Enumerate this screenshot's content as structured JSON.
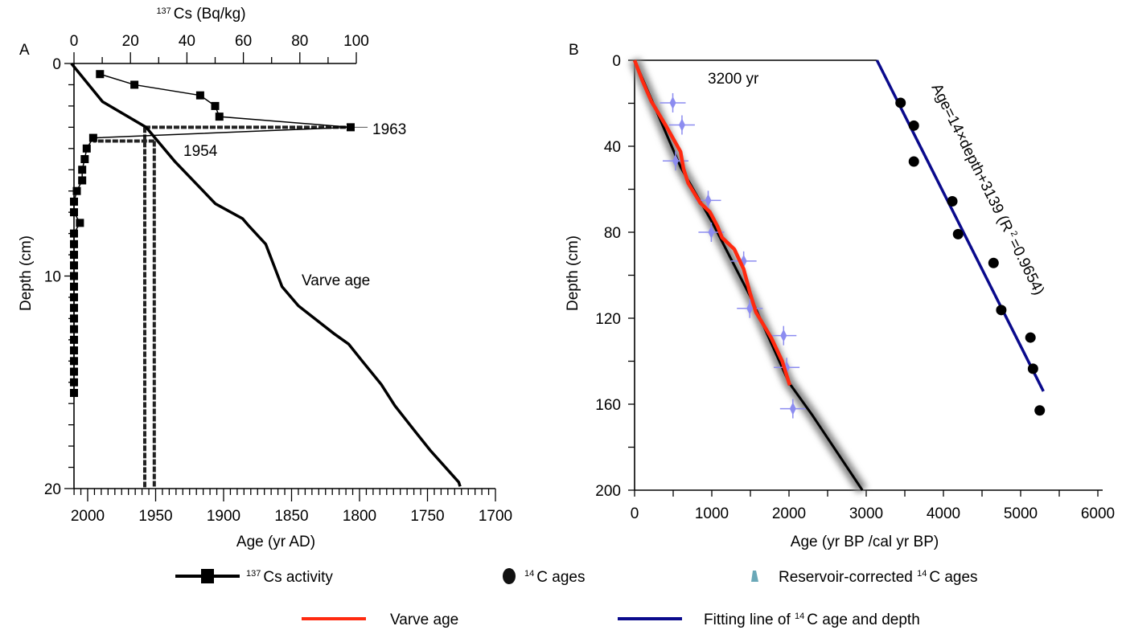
{
  "chart_data": [
    {
      "panel": "A",
      "type": "line",
      "top_axis": {
        "label_sup": "137",
        "label": "Cs (Bq/kg)",
        "range": [
          0,
          100
        ],
        "ticks": [
          "0",
          "20",
          "40",
          "60",
          "80",
          "100"
        ]
      },
      "bottom_axis": {
        "label": "Age (yr AD)",
        "range": [
          2012,
          1700
        ],
        "ticks": [
          "2000",
          "1950",
          "1900",
          "1850",
          "1800",
          "1750",
          "1700"
        ]
      },
      "y_axis": {
        "label": "Depth (cm)",
        "range": [
          0,
          20
        ],
        "ticks": [
          "0",
          "10",
          "20"
        ],
        "inverted": true
      },
      "series": [
        {
          "name": "137Cs activity",
          "axis": "top",
          "marker": "square",
          "points": [
            [
              9.2,
              0.5
            ],
            [
              21.4,
              1.0
            ],
            [
              44.7,
              1.5
            ],
            [
              50,
              2.0
            ],
            [
              51.5,
              2.5
            ],
            [
              98,
              3.0
            ],
            [
              6.8,
              3.5
            ],
            [
              4.5,
              4.0
            ],
            [
              3.8,
              4.5
            ],
            [
              2.9,
              5.0
            ],
            [
              2.9,
              5.5
            ],
            [
              1.0,
              6.0
            ],
            [
              0,
              6.5
            ],
            [
              0,
              7.0
            ],
            [
              2.1,
              7.5
            ],
            [
              0,
              8.0
            ],
            [
              0,
              8.5
            ],
            [
              0,
              9.0
            ],
            [
              0,
              9.5
            ],
            [
              0,
              10.0
            ],
            [
              0,
              10.5
            ],
            [
              0,
              11.0
            ],
            [
              0,
              11.5
            ],
            [
              0,
              12.0
            ],
            [
              0,
              12.5
            ],
            [
              0,
              13.0
            ],
            [
              0,
              13.5
            ],
            [
              0,
              14.0
            ],
            [
              0,
              14.5
            ],
            [
              0,
              15.0
            ],
            [
              0,
              15.5
            ]
          ]
        },
        {
          "name": "Varve age",
          "axis": "bottom",
          "points": [
            [
              2012,
              0
            ],
            [
              1989,
              1.8
            ],
            [
              1957,
              3.0
            ],
            [
              1936,
              4.6
            ],
            [
              1906,
              6.6
            ],
            [
              1886,
              7.3
            ],
            [
              1882,
              7.6
            ],
            [
              1869,
              8.5
            ],
            [
              1863,
              9.5
            ],
            [
              1857,
              10.5
            ],
            [
              1845,
              11.4
            ],
            [
              1835,
              11.9
            ],
            [
              1819,
              12.7
            ],
            [
              1808,
              13.2
            ],
            [
              1798,
              14.0
            ],
            [
              1784,
              15.1
            ],
            [
              1774,
              16.1
            ],
            [
              1758,
              17.4
            ],
            [
              1748,
              18.2
            ],
            [
              1727,
              19.7
            ],
            [
              1726,
              19.9
            ]
          ]
        }
      ],
      "markers": [
        {
          "label": "1963",
          "depth": 3.0,
          "cs": 98,
          "age": 1958
        },
        {
          "label": "1954",
          "depth": 3.65,
          "cs": 6.8,
          "age": 1951
        }
      ],
      "annotations": {
        "varve": "Varve age"
      }
    },
    {
      "panel": "B",
      "type": "scatter",
      "x_axis": {
        "label": "Age (yr BP /cal yr BP)",
        "range": [
          0,
          6000
        ],
        "ticks": [
          "0",
          "1000",
          "2000",
          "3000",
          "4000",
          "5000",
          "6000"
        ]
      },
      "y_axis": {
        "label": "Depth (cm)",
        "range": [
          0,
          200
        ],
        "ticks": [
          "0",
          "40",
          "80",
          "120",
          "160",
          "200"
        ],
        "inverted": true
      },
      "c14_ages": [
        [
          3445,
          19.8
        ],
        [
          3617,
          30.4
        ],
        [
          3617,
          47.1
        ],
        [
          4115,
          65.6
        ],
        [
          4190,
          80.9
        ],
        [
          4649,
          94.3
        ],
        [
          4749,
          116.2
        ],
        [
          5127,
          129
        ],
        [
          5160,
          143.5
        ],
        [
          5247,
          162.9
        ]
      ],
      "reservoir_corrected": [
        [
          495,
          19.8
        ],
        [
          614,
          30.1
        ],
        [
          531,
          46.8
        ],
        [
          953,
          65.2
        ],
        [
          994,
          80
        ],
        [
          1413,
          93.4
        ],
        [
          1492,
          115.4
        ],
        [
          1930,
          128.1
        ],
        [
          1970,
          142.9
        ],
        [
          2050,
          162.1
        ]
      ],
      "varve_age": [
        [
          0,
          0
        ],
        [
          97,
          9.1
        ],
        [
          217,
          19.1
        ],
        [
          416,
          31.1
        ],
        [
          595,
          42.5
        ],
        [
          634,
          50.5
        ],
        [
          695,
          57.2
        ],
        [
          854,
          66.5
        ],
        [
          974,
          70.5
        ],
        [
          1073,
          77.2
        ],
        [
          1133,
          82.5
        ],
        [
          1292,
          87.9
        ],
        [
          1413,
          97.2
        ],
        [
          1492,
          107.9
        ],
        [
          1572,
          117.2
        ],
        [
          1771,
          129.2
        ],
        [
          1911,
          139.9
        ],
        [
          2010,
          151.2
        ]
      ],
      "age_model": [
        [
          0,
          0
        ],
        [
          600,
          50
        ],
        [
          1000,
          75
        ],
        [
          1500,
          110
        ],
        [
          2000,
          150
        ],
        [
          2300,
          165
        ],
        [
          2950,
          200
        ]
      ],
      "fit": {
        "slope": 14,
        "intercept": 3139,
        "r2": 0.9654,
        "depth_range": [
          0,
          154
        ],
        "label": "Age=14×depth+3139 (R",
        "label_sup": "2",
        "label_end": "=0.9654)"
      },
      "offset": {
        "label": "3200 yr",
        "from": 0,
        "to": 3139
      },
      "colors": {
        "varve": "#ff2a10",
        "fit": "#0a0a8c",
        "reservoir": "#8c8cf0",
        "c14": "#000000"
      }
    }
  ],
  "panels": {
    "a": "A",
    "b": "B"
  },
  "legend": [
    {
      "sup": "137",
      "text": "Cs activity"
    },
    {
      "sup": "14",
      "text": "C ages"
    },
    {
      "text": "Reservoir-corrected ",
      "sup": "14",
      "text2": "C ages"
    },
    {
      "text": "Varve age"
    },
    {
      "text": "Fitting line of ",
      "sup": "14",
      "text2": "C age and depth"
    }
  ]
}
